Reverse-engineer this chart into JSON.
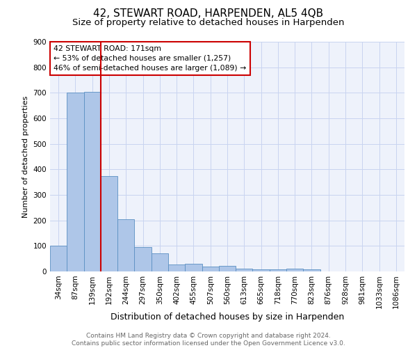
{
  "title": "42, STEWART ROAD, HARPENDEN, AL5 4QB",
  "subtitle": "Size of property relative to detached houses in Harpenden",
  "xlabel": "Distribution of detached houses by size in Harpenden",
  "ylabel": "Number of detached properties",
  "categories": [
    "34sqm",
    "87sqm",
    "139sqm",
    "192sqm",
    "244sqm",
    "297sqm",
    "350sqm",
    "402sqm",
    "455sqm",
    "507sqm",
    "560sqm",
    "613sqm",
    "665sqm",
    "718sqm",
    "770sqm",
    "823sqm",
    "876sqm",
    "928sqm",
    "981sqm",
    "1033sqm",
    "1086sqm"
  ],
  "values": [
    100,
    700,
    705,
    375,
    205,
    95,
    70,
    28,
    30,
    20,
    22,
    10,
    7,
    7,
    10,
    7,
    0,
    0,
    0,
    0,
    0
  ],
  "bar_color": "#aec6e8",
  "bar_edge_color": "#5a8fc2",
  "property_line_color": "#cc0000",
  "annotation_text": "42 STEWART ROAD: 171sqm\n← 53% of detached houses are smaller (1,257)\n46% of semi-detached houses are larger (1,089) →",
  "annotation_box_color": "#ffffff",
  "annotation_box_edge_color": "#cc0000",
  "footer_text": "Contains HM Land Registry data © Crown copyright and database right 2024.\nContains public sector information licensed under the Open Government Licence v3.0.",
  "ylim": [
    0,
    900
  ],
  "bg_color": "#eef2fb",
  "grid_color": "#c8d4f0",
  "title_fontsize": 11,
  "subtitle_fontsize": 9.5,
  "ylabel_fontsize": 8,
  "xlabel_fontsize": 9,
  "tick_fontsize": 7.5,
  "annotation_fontsize": 7.8,
  "footer_fontsize": 6.5,
  "footer_color": "#666666"
}
